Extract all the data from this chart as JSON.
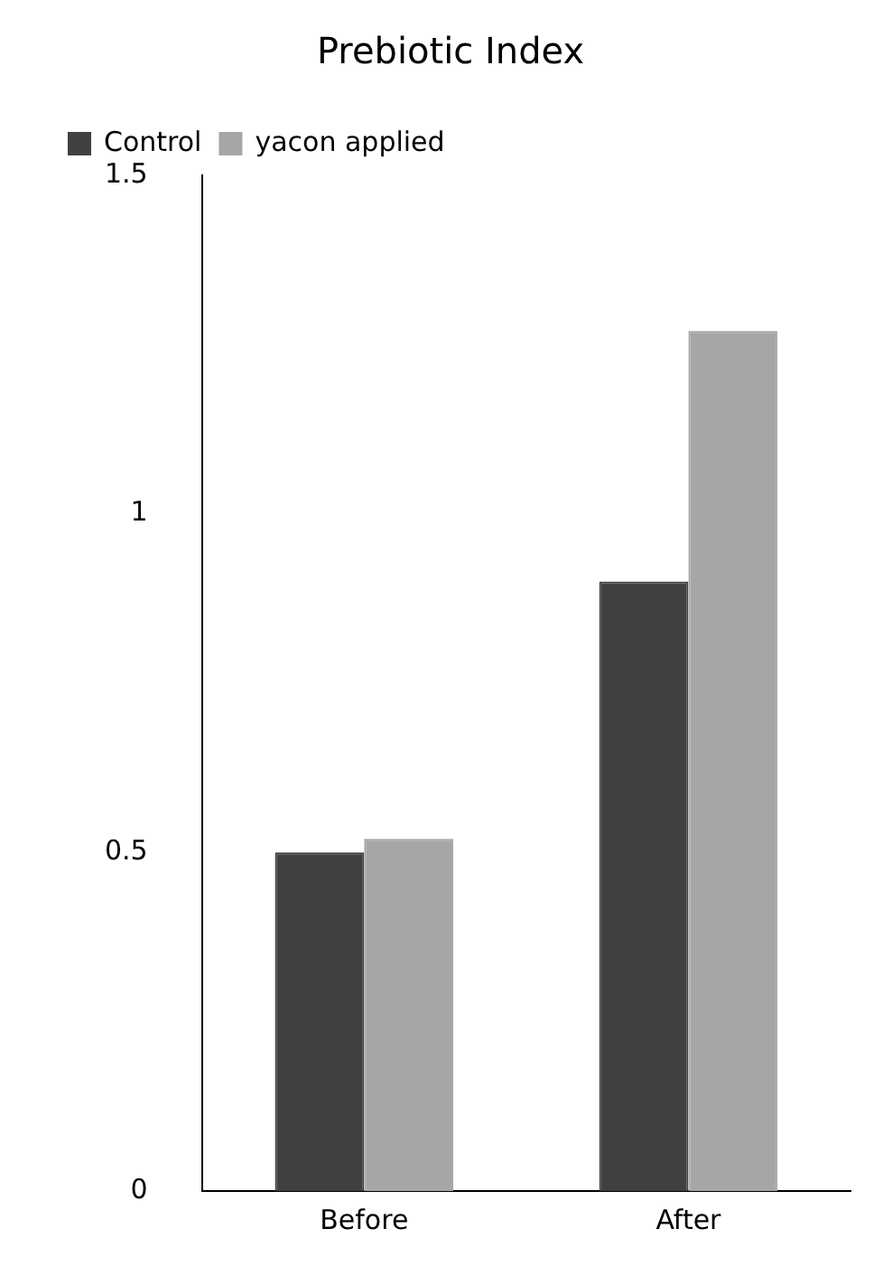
{
  "chart_data": {
    "type": "bar",
    "title": "Prebiotic Index",
    "categories": [
      "Before",
      "After"
    ],
    "series": [
      {
        "name": "Control",
        "color": "#404040",
        "values": [
          0.5,
          0.9
        ]
      },
      {
        "name": "yacon applied",
        "color": "#a6a6a6",
        "values": [
          0.52,
          1.27
        ]
      }
    ],
    "ylim": [
      0,
      1.5
    ],
    "yticks": [
      0,
      0.5,
      1,
      1.5
    ],
    "grid": false,
    "legend": "top left"
  }
}
